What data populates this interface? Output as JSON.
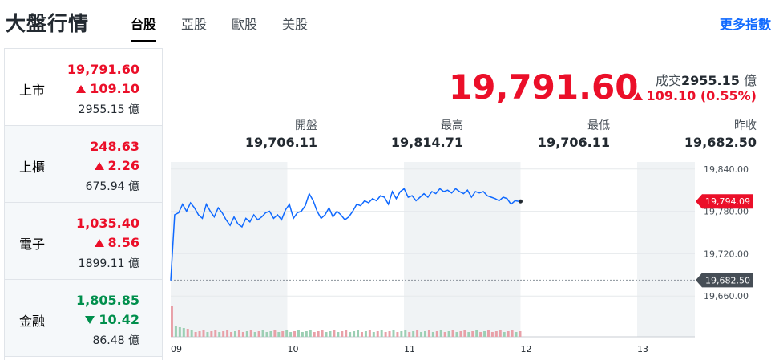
{
  "page_title": "大盤行情",
  "tabs": [
    {
      "label": "台股",
      "active": true
    },
    {
      "label": "亞股",
      "active": false
    },
    {
      "label": "歐股",
      "active": false
    },
    {
      "label": "美股",
      "active": false
    }
  ],
  "more_link": "更多指數",
  "sidebar": [
    {
      "name": "上市",
      "price": "19,791.60",
      "change": "109.10",
      "volume": "2955.15 億",
      "direction": "up"
    },
    {
      "name": "上櫃",
      "price": "248.63",
      "change": "2.26",
      "volume": "675.94 億",
      "direction": "up"
    },
    {
      "name": "電子",
      "price": "1,035.40",
      "change": "8.56",
      "volume": "1899.11 億",
      "direction": "up"
    },
    {
      "name": "金融",
      "price": "1,805.85",
      "change": "10.42",
      "volume": "86.48 億",
      "direction": "down"
    }
  ],
  "main": {
    "price": "19,791.60",
    "volume_label": "成交",
    "volume_value": "2955.15",
    "volume_unit": "億",
    "change": "109.10 (0.55%)",
    "stats": [
      {
        "label": "開盤",
        "value": "19,706.11"
      },
      {
        "label": "最高",
        "value": "19,814.71"
      },
      {
        "label": "最低",
        "value": "19,706.11"
      },
      {
        "label": "昨收",
        "value": "19,682.50"
      }
    ]
  },
  "colors": {
    "up": "#eb0f29",
    "down": "#008f4c",
    "line": "#0f69ff",
    "link": "#0f69ff"
  },
  "chart_data": {
    "type": "line",
    "x_tick_labels": [
      "09",
      "10",
      "11",
      "12",
      "13"
    ],
    "y_tick_labels": [
      "19,840.00",
      "19,780.00",
      "19,720.00",
      "19,660.00"
    ],
    "ylim": [
      19650,
      19850
    ],
    "current_value": 19794.09,
    "current_label": "19,794.09",
    "reference_value": 19682.5,
    "reference_label": "19,682.50",
    "values": [
      19682,
      19775,
      19778,
      19790,
      19780,
      19792,
      19785,
      19775,
      19770,
      19790,
      19780,
      19772,
      19785,
      19778,
      19768,
      19760,
      19772,
      19762,
      19758,
      19770,
      19765,
      19775,
      19768,
      19772,
      19778,
      19780,
      19770,
      19775,
      19768,
      19782,
      19790,
      19770,
      19778,
      19780,
      19788,
      19805,
      19795,
      19780,
      19770,
      19775,
      19785,
      19772,
      19780,
      19775,
      19768,
      19772,
      19780,
      19790,
      19788,
      19795,
      19792,
      19798,
      19795,
      19802,
      19800,
      19790,
      19808,
      19798,
      19808,
      19812,
      19800,
      19802,
      19795,
      19800,
      19805,
      19800,
      19808,
      19805,
      19812,
      19808,
      19810,
      19806,
      19812,
      19808,
      19805,
      19810,
      19800,
      19808,
      19806,
      19808,
      19802,
      19800,
      19798,
      19795,
      19800,
      19798,
      19790,
      19795,
      19794
    ]
  }
}
